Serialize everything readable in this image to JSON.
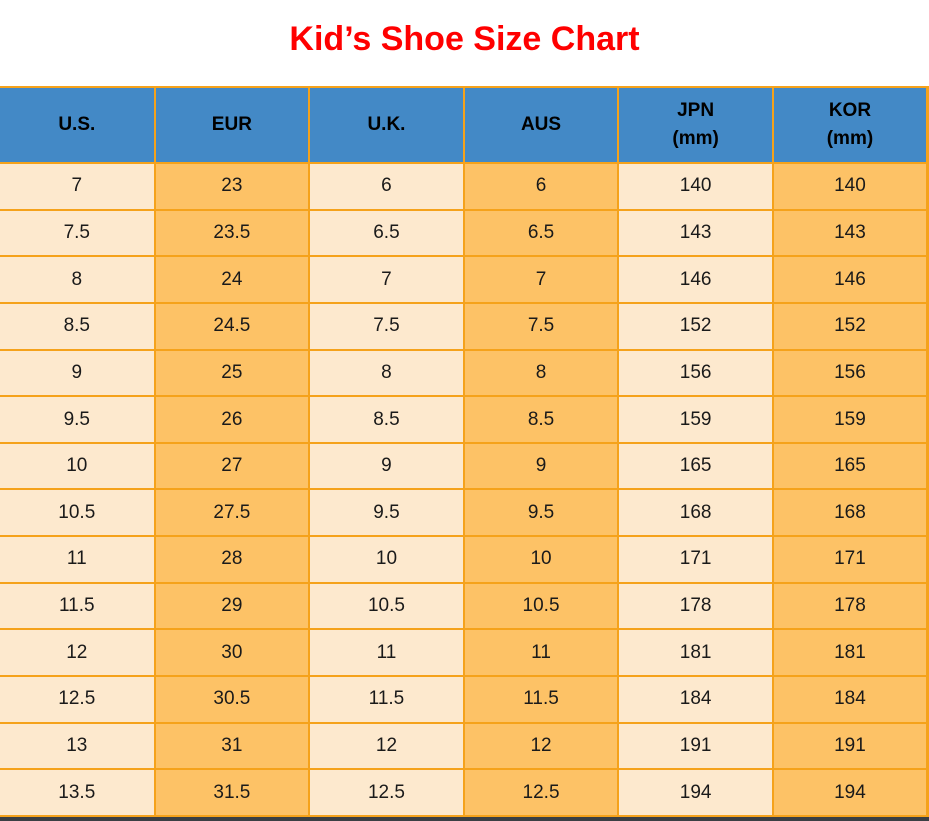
{
  "page": {
    "title": "Kid’s Shoe Size Chart"
  },
  "colors": {
    "title": "#FF0000",
    "header_bg": "#4389C6",
    "header_text": "#000000",
    "cell_text": "#1A1A1A",
    "cell_cream": "#FDE9CE",
    "cell_orange": "#FDC266",
    "border": "#F5A21B",
    "bottom_bar": "#3A3F44",
    "background": "#FFFFFF"
  },
  "table": {
    "headers": [
      {
        "key": "us",
        "label": "U.S.",
        "sub": ""
      },
      {
        "key": "eur",
        "label": "EUR",
        "sub": ""
      },
      {
        "key": "uk",
        "label": "U.K.",
        "sub": ""
      },
      {
        "key": "aus",
        "label": "AUS",
        "sub": ""
      },
      {
        "key": "jpn",
        "label": "JPN",
        "sub": "(mm)"
      },
      {
        "key": "kor",
        "label": "KOR",
        "sub": "(mm)"
      }
    ],
    "rows": [
      [
        "7",
        "23",
        "6",
        "6",
        "140",
        "140"
      ],
      [
        "7.5",
        "23.5",
        "6.5",
        "6.5",
        "143",
        "143"
      ],
      [
        "8",
        "24",
        "7",
        "7",
        "146",
        "146"
      ],
      [
        "8.5",
        "24.5",
        "7.5",
        "7.5",
        "152",
        "152"
      ],
      [
        "9",
        "25",
        "8",
        "8",
        "156",
        "156"
      ],
      [
        "9.5",
        "26",
        "8.5",
        "8.5",
        "159",
        "159"
      ],
      [
        "10",
        "27",
        "9",
        "9",
        "165",
        "165"
      ],
      [
        "10.5",
        "27.5",
        "9.5",
        "9.5",
        "168",
        "168"
      ],
      [
        "11",
        "28",
        "10",
        "10",
        "171",
        "171"
      ],
      [
        "11.5",
        "29",
        "10.5",
        "10.5",
        "178",
        "178"
      ],
      [
        "12",
        "30",
        "11",
        "11",
        "181",
        "181"
      ],
      [
        "12.5",
        "30.5",
        "11.5",
        "11.5",
        "184",
        "184"
      ],
      [
        "13",
        "31",
        "12",
        "12",
        "191",
        "191"
      ],
      [
        "13.5",
        "31.5",
        "12.5",
        "12.5",
        "194",
        "194"
      ]
    ]
  },
  "chart_data": {
    "type": "table",
    "title": "Kid's Shoe Size Chart",
    "columns": [
      "U.S.",
      "EUR",
      "U.K.",
      "AUS",
      "JPN (mm)",
      "KOR (mm)"
    ],
    "rows": [
      [
        7,
        23,
        6,
        6,
        140,
        140
      ],
      [
        7.5,
        23.5,
        6.5,
        6.5,
        143,
        143
      ],
      [
        8,
        24,
        7,
        7,
        146,
        146
      ],
      [
        8.5,
        24.5,
        7.5,
        7.5,
        152,
        152
      ],
      [
        9,
        25,
        8,
        8,
        156,
        156
      ],
      [
        9.5,
        26,
        8.5,
        8.5,
        159,
        159
      ],
      [
        10,
        27,
        9,
        9,
        165,
        165
      ],
      [
        10.5,
        27.5,
        9.5,
        9.5,
        168,
        168
      ],
      [
        11,
        28,
        10,
        10,
        171,
        171
      ],
      [
        11.5,
        29,
        10.5,
        10.5,
        178,
        178
      ],
      [
        12,
        30,
        11,
        11,
        181,
        181
      ],
      [
        12.5,
        30.5,
        11.5,
        11.5,
        184,
        184
      ],
      [
        13,
        31,
        12,
        12,
        191,
        191
      ],
      [
        13.5,
        31.5,
        12.5,
        12.5,
        194,
        194
      ]
    ],
    "layout": {
      "column_striping": [
        "cream",
        "orange",
        "cream",
        "orange",
        "cream",
        "orange"
      ],
      "header_style": "blue-bg-bold-black",
      "grid": "orange-lines",
      "title_position": "top-center-red"
    }
  }
}
